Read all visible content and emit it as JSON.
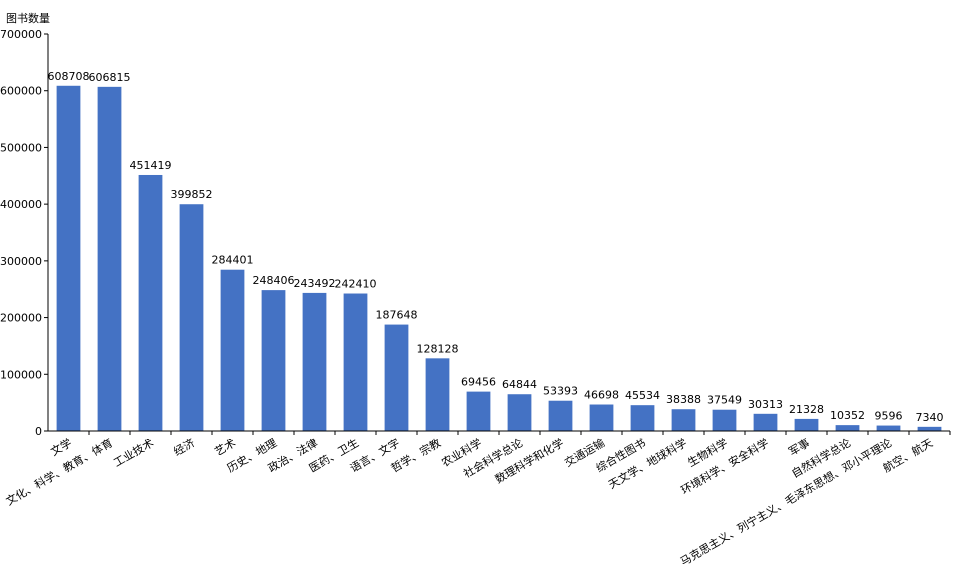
{
  "chart_data": {
    "type": "bar",
    "title": "",
    "xlabel": "",
    "ylabel": "图书数量",
    "ylim": [
      0,
      700000
    ],
    "yticks": [
      0,
      100000,
      200000,
      300000,
      400000,
      500000,
      600000,
      700000
    ],
    "grid": false,
    "bar_color": "#4472c4",
    "categories": [
      "文学",
      "文化、科学、教育、体育",
      "工业技术",
      "经济",
      "艺术",
      "历史、地理",
      "政治、法律",
      "医药、卫生",
      "语言、文字",
      "哲学、宗教",
      "农业科学",
      "社会科学总论",
      "数理科学和化学",
      "交通运输",
      "综合性图书",
      "天文学、地球科学",
      "生物科学",
      "环境科学、安全科学",
      "军事",
      "自然科学总论",
      "马克思主义、列宁主义、毛泽东思想、邓小平理论",
      "航空、航天"
    ],
    "values": [
      608708,
      606815,
      451419,
      399852,
      284401,
      248406,
      243492,
      242410,
      187648,
      128128,
      69456,
      64844,
      53393,
      46698,
      45534,
      38388,
      37549,
      30313,
      21328,
      10352,
      9596,
      7340
    ]
  }
}
